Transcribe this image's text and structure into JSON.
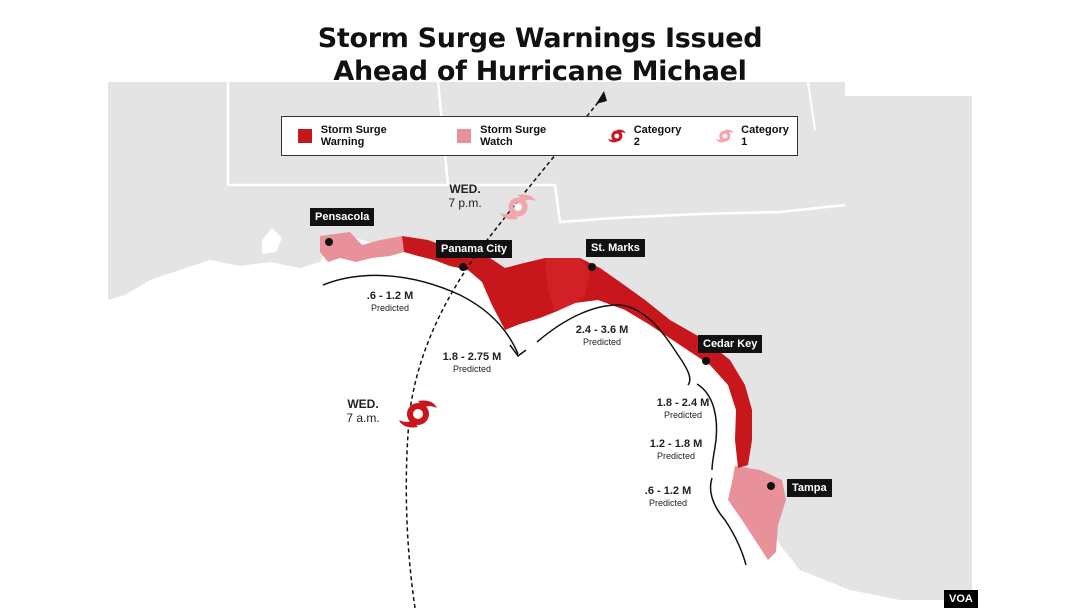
{
  "title": {
    "line1": "Storm Surge Warnings Issued",
    "line2": "Ahead of Hurricane Michael"
  },
  "legend": {
    "warning": "Storm Surge Warning",
    "watch": "Storm Surge Watch",
    "category2": "Category 2",
    "category1": "Category 1"
  },
  "colors": {
    "warning": "#c8161d",
    "watch": "#e8919a",
    "category1": "#f0a6ab",
    "land": "#e4e4e4",
    "border": "#ffffff"
  },
  "icons": {
    "category2": "hurricane-icon",
    "category1": "hurricane-icon",
    "location": "dot-marker"
  },
  "places": {
    "pensacola": "Pensacola",
    "panama_city": "Panama City",
    "st_marks": "St. Marks",
    "cedar_key": "Cedar Key",
    "tampa": "Tampa"
  },
  "track": {
    "wed_pm_day": "WED.",
    "wed_pm_time": "7 p.m.",
    "wed_am_day": "WED.",
    "wed_am_time": "7 a.m."
  },
  "surge": {
    "predicted": "Predicted",
    "s1": ".6 - 1.2 M",
    "s2": "1.8 - 2.75 M",
    "s3": "2.4 - 3.6 M",
    "s4": "1.8 - 2.4 M",
    "s5": "1.2 - 1.8 M",
    "s6": ".6 - 1.2 M"
  },
  "credit": "VOA"
}
